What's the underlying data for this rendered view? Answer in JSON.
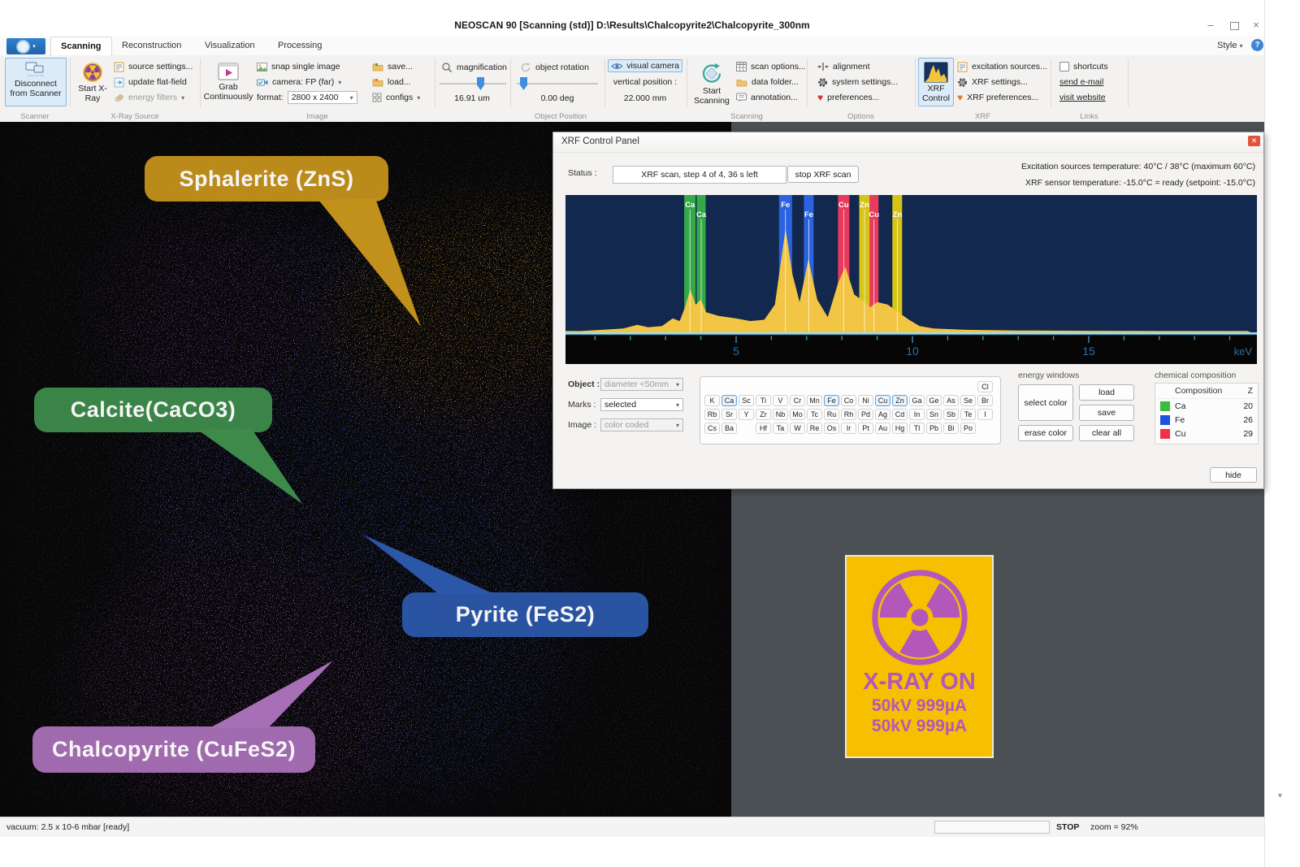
{
  "window": {
    "title": "NEOSCAN 90 [Scanning (std)] D:\\Results\\Chalcopyrite2\\Chalcopyrite_300nm",
    "style_menu": "Style"
  },
  "tabs": [
    {
      "label": "Scanning",
      "active": true
    },
    {
      "label": "Reconstruction",
      "active": false
    },
    {
      "label": "Visualization",
      "active": false
    },
    {
      "label": "Processing",
      "active": false
    }
  ],
  "ribbon": {
    "scanner": {
      "group": "Scanner",
      "disconnect": "Disconnect from Scanner"
    },
    "xray_source": {
      "group": "X-Ray Source",
      "start": "Start X-Ray",
      "source_settings": "source settings...",
      "update_flat_field": "update flat-field",
      "energy_filters": "energy filters"
    },
    "image": {
      "group": "Image",
      "grab": "Grab Continuously",
      "snap": "snap single image",
      "camera": "camera: FP (far)",
      "format_label": "format:",
      "format_value": "2800 x 2400",
      "save": "save...",
      "load": "load...",
      "configs": "configs"
    },
    "object_position": {
      "group": "Object Position",
      "magnification_label": "magnification",
      "magnification_value": "16.91 um",
      "rotation_label": "object rotation",
      "rotation_value": "0.00 deg",
      "visual_camera": "visual camera",
      "vertical_label": "vertical position :",
      "vertical_value": "22.000 mm"
    },
    "scanning": {
      "group": "Scanning",
      "start": "Start Scanning",
      "scan_options": "scan options...",
      "data_folder": "data folder...",
      "annotation": "annotation..."
    },
    "options": {
      "group": "Options",
      "alignment": "alignment",
      "system_settings": "system settings...",
      "preferences": "preferences..."
    },
    "xrf": {
      "group": "XRF",
      "control": "XRF Control",
      "excitation_sources": "excitation sources...",
      "xrf_settings": "XRF settings...",
      "xrf_preferences": "XRF preferences..."
    },
    "links": {
      "group": "Links",
      "shortcuts": "shortcuts",
      "send_email": "send e-mail",
      "visit_website": "visit website"
    }
  },
  "scan_labels": [
    {
      "name": "Sphalerite (ZnS)",
      "color": "#c2911c"
    },
    {
      "name": "Calcite(CaCO3)",
      "color": "#3e8a4b"
    },
    {
      "name": "Pyrite (FeS2)",
      "color": "#2b57a8"
    },
    {
      "name": "Chalcopyrite (CuFeS2)",
      "color": "#a76fb5"
    }
  ],
  "xrf_panel": {
    "title": "XRF Control Panel",
    "status_label": "Status :",
    "status_value": "XRF scan, step 4 of 4, 36 s left",
    "stop_button": "stop XRF scan",
    "temperature_line1": "Excitation sources temperature: 40°C / 38°C (maximum 60°C)",
    "temperature_line2": "XRF sensor temperature: -15.0°C = ready  (setpoint: -15.0°C)",
    "object_label": "Object :",
    "object_value": "diameter <50mm",
    "marks_label": "Marks :",
    "marks_value": "selected",
    "image_label": "Image :",
    "image_value": "color coded",
    "energy_windows": {
      "group": "energy windows",
      "select_color": "select color",
      "load": "load",
      "save": "save",
      "erase_color": "erase color",
      "clear_all": "clear all"
    },
    "chemical_composition": {
      "group": "chemical composition",
      "col_composition": "Composition",
      "col_z": "Z",
      "rows": [
        {
          "element": "Ca",
          "z": "20",
          "color": "#3dbb3d"
        },
        {
          "element": "Fe",
          "z": "26",
          "color": "#1f4fe0"
        },
        {
          "element": "Cu",
          "z": "29",
          "color": "#ef3048"
        }
      ]
    },
    "hide_button": "hide"
  },
  "chart_data": {
    "type": "area",
    "title": "XRF spectrum",
    "xlabel": "keV",
    "x_ticks": [
      5,
      10,
      15
    ],
    "x_range": [
      0,
      19.6
    ],
    "background": "#13284e",
    "line_color": "#f2c644",
    "spectrum": [
      [
        0,
        1
      ],
      [
        0.6,
        1
      ],
      [
        1.2,
        2
      ],
      [
        1.8,
        3
      ],
      [
        2.2,
        6
      ],
      [
        2.5,
        4
      ],
      [
        2.9,
        5
      ],
      [
        3.2,
        11
      ],
      [
        3.4,
        9
      ],
      [
        3.55,
        20
      ],
      [
        3.7,
        34
      ],
      [
        3.85,
        22
      ],
      [
        4.0,
        26
      ],
      [
        4.15,
        16
      ],
      [
        4.5,
        13
      ],
      [
        5.0,
        11
      ],
      [
        5.4,
        9
      ],
      [
        5.8,
        10
      ],
      [
        6.1,
        22
      ],
      [
        6.4,
        82
      ],
      [
        6.6,
        46
      ],
      [
        6.8,
        24
      ],
      [
        7.05,
        58
      ],
      [
        7.3,
        26
      ],
      [
        7.6,
        12
      ],
      [
        7.9,
        40
      ],
      [
        8.1,
        52
      ],
      [
        8.35,
        30
      ],
      [
        8.6,
        25
      ],
      [
        8.8,
        20
      ],
      [
        9.0,
        24
      ],
      [
        9.3,
        22
      ],
      [
        9.6,
        16
      ],
      [
        9.9,
        10
      ],
      [
        10.2,
        5
      ],
      [
        10.6,
        3
      ],
      [
        11.5,
        2
      ],
      [
        13,
        1.5
      ],
      [
        15,
        1.2
      ],
      [
        17,
        1
      ],
      [
        19.5,
        1
      ]
    ],
    "energy_windows": [
      {
        "element": "Ca",
        "keV": 3.69,
        "color": "#35a84a",
        "width": 14,
        "row": 0
      },
      {
        "element": "Ca",
        "keV": 4.01,
        "color": "#35a84a",
        "width": 11,
        "row": 1
      },
      {
        "element": "Fe",
        "keV": 6.4,
        "color": "#2a62e0",
        "width": 16,
        "row": 0
      },
      {
        "element": "Fe",
        "keV": 7.06,
        "color": "#2a62e0",
        "width": 12,
        "row": 1
      },
      {
        "element": "Cu",
        "keV": 8.05,
        "color": "#e83a5c",
        "width": 14,
        "row": 0
      },
      {
        "element": "Zn",
        "keV": 8.64,
        "color": "#d6c518",
        "width": 13,
        "row": 0
      },
      {
        "element": "Cu",
        "keV": 8.91,
        "color": "#e83a5c",
        "width": 11,
        "row": 1
      },
      {
        "element": "Zn",
        "keV": 9.57,
        "color": "#d6c518",
        "width": 12,
        "row": 1
      }
    ]
  },
  "elements": {
    "rows": [
      [
        "K",
        "Ca",
        "Sc",
        "Ti",
        "V",
        "Cr",
        "Mn",
        "Fe",
        "Co",
        "Ni",
        "Cu",
        "Zn",
        "Ga",
        "Ge",
        "As",
        "Se",
        "Br"
      ],
      [
        "Rb",
        "Sr",
        "Y",
        "Zr",
        "Nb",
        "Mo",
        "Tc",
        "Ru",
        "Rh",
        "Pd",
        "Ag",
        "Cd",
        "In",
        "Sn",
        "Sb",
        "Te",
        "I"
      ],
      [
        "Cs",
        "Ba",
        "",
        "Hf",
        "Ta",
        "W",
        "Re",
        "Os",
        "Ir",
        "Pt",
        "Au",
        "Hg",
        "Tl",
        "Pb",
        "Bi",
        "Po",
        ""
      ]
    ],
    "top_right": "Cl",
    "selected": [
      "Ca",
      "Fe",
      "Cu",
      "Zn"
    ]
  },
  "xray_sign": {
    "line1": "X-RAY ON",
    "line2": "50kV 999µA",
    "line3": "50kV 999µA",
    "bg": "#f6bf00",
    "fg": "#b357ba"
  },
  "status_bar": {
    "vacuum": "vacuum: 2.5 x 10-6 mbar [ready]",
    "stop": "STOP",
    "zoom": "zoom = 92%"
  }
}
